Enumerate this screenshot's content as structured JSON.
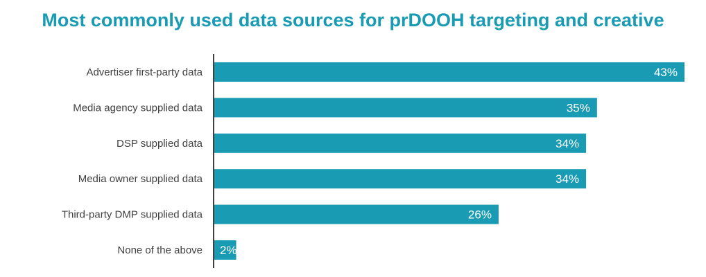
{
  "chart_data": {
    "type": "bar",
    "orientation": "horizontal",
    "title": "Most commonly used data sources for prDOOH targeting and creative",
    "categories": [
      "Advertiser first-party data",
      "Media agency supplied data",
      "DSP supplied data",
      "Media owner supplied data",
      "Third-party DMP supplied data",
      "None of the above"
    ],
    "values": [
      43,
      35,
      34,
      34,
      26,
      2
    ],
    "data_labels": [
      "43%",
      "35%",
      "34%",
      "34%",
      "26%",
      "2%"
    ],
    "xlabel": "",
    "ylabel": "",
    "xlim": [
      0,
      43
    ],
    "grid": false,
    "bar_color": "#1a9bb4",
    "title_color": "#1a9bb4"
  }
}
